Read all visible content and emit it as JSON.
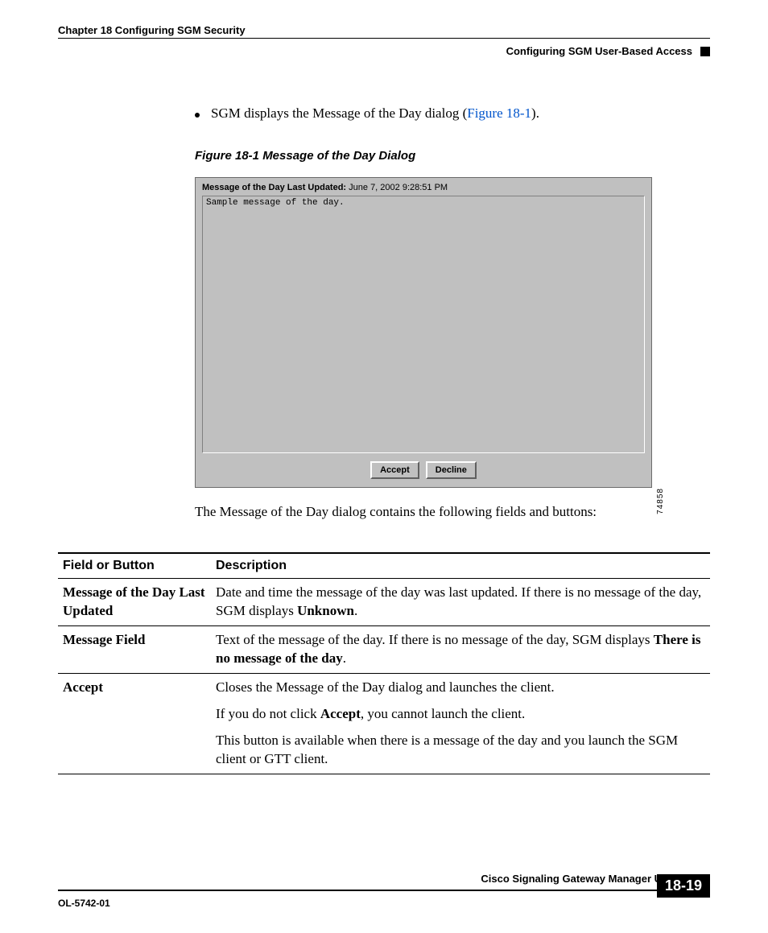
{
  "header": {
    "chapter_line": "Chapter 18    Configuring SGM Security",
    "section_line": "Configuring SGM User-Based Access"
  },
  "body": {
    "bullet_text_pre": "SGM displays the Message of the Day dialog (",
    "fig_ref": "Figure 18-1",
    "bullet_text_post": ").",
    "fig_caption": "Figure 18-1   Message of the Day Dialog",
    "after_fig": "The Message of the Day dialog contains the following fields and buttons:"
  },
  "dialog": {
    "updated_label": "Message of the Day Last Updated:",
    "updated_value": "June 7, 2002 9:28:51 PM",
    "sample_text": "Sample message of the day.",
    "accept_label": "Accept",
    "decline_label": "Decline",
    "image_id": "74858",
    "background_color": "#c0c0c0"
  },
  "table": {
    "col1_header": "Field or Button",
    "col2_header": "Description",
    "rows": [
      {
        "field": "Message of the Day Last Updated",
        "desc_html": "Date and time the message of the day was last updated. If there is no message of the day, SGM displays <span class=\"b\">Unknown</span>."
      },
      {
        "field": "Message Field",
        "desc_html": "Text of the message of the day. If there is no message of the day, SGM displays <span class=\"b\">There is no message of the day</span>."
      },
      {
        "field": "Accept",
        "desc_html": "<div class=\"para\">Closes the Message of the Day dialog and launches the client.</div><div class=\"para\">If you do not click <span class=\"b\">Accept</span>, you cannot launch the client.</div><div class=\"para\">This button is available when there is a message of the day and you launch the SGM client or GTT client.</div>"
      }
    ]
  },
  "footer": {
    "book_title": "Cisco Signaling Gateway Manager User Guide",
    "doc_num": "OL-5742-01",
    "page_num": "18-19"
  }
}
